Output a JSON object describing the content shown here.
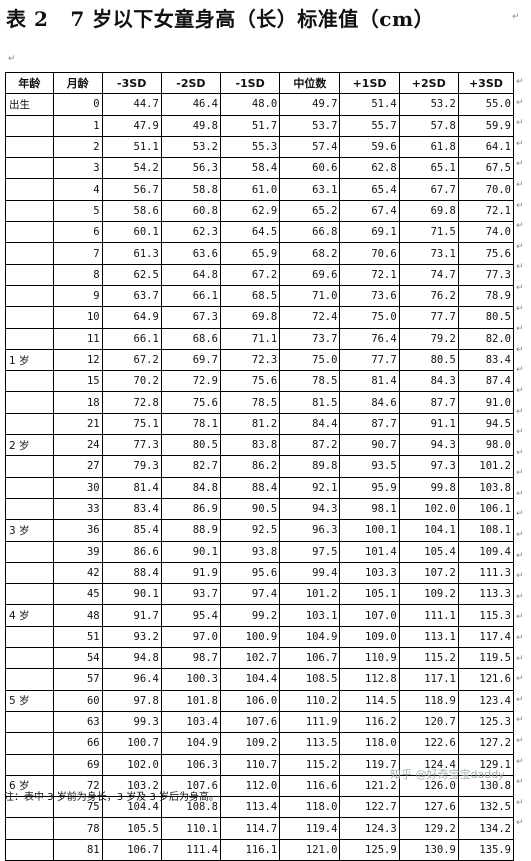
{
  "title": {
    "num": "表 2",
    "text": "7 岁以下女童身高（长）标准值（cm）"
  },
  "headers": [
    "年龄",
    "月龄",
    "-3SD",
    "-2SD",
    "-1SD",
    "中位数",
    "+1SD",
    "+2SD",
    "+3SD"
  ],
  "rows": [
    {
      "age": "出生",
      "m": "0",
      "v": [
        "44.7",
        "46.4",
        "48.0",
        "49.7",
        "51.4",
        "53.2",
        "55.0"
      ]
    },
    {
      "age": "",
      "m": "1",
      "v": [
        "47.9",
        "49.8",
        "51.7",
        "53.7",
        "55.7",
        "57.8",
        "59.9"
      ]
    },
    {
      "age": "",
      "m": "2",
      "v": [
        "51.1",
        "53.2",
        "55.3",
        "57.4",
        "59.6",
        "61.8",
        "64.1"
      ]
    },
    {
      "age": "",
      "m": "3",
      "v": [
        "54.2",
        "56.3",
        "58.4",
        "60.6",
        "62.8",
        "65.1",
        "67.5"
      ]
    },
    {
      "age": "",
      "m": "4",
      "v": [
        "56.7",
        "58.8",
        "61.0",
        "63.1",
        "65.4",
        "67.7",
        "70.0"
      ]
    },
    {
      "age": "",
      "m": "5",
      "v": [
        "58.6",
        "60.8",
        "62.9",
        "65.2",
        "67.4",
        "69.8",
        "72.1"
      ]
    },
    {
      "age": "",
      "m": "6",
      "v": [
        "60.1",
        "62.3",
        "64.5",
        "66.8",
        "69.1",
        "71.5",
        "74.0"
      ]
    },
    {
      "age": "",
      "m": "7",
      "v": [
        "61.3",
        "63.6",
        "65.9",
        "68.2",
        "70.6",
        "73.1",
        "75.6"
      ]
    },
    {
      "age": "",
      "m": "8",
      "v": [
        "62.5",
        "64.8",
        "67.2",
        "69.6",
        "72.1",
        "74.7",
        "77.3"
      ]
    },
    {
      "age": "",
      "m": "9",
      "v": [
        "63.7",
        "66.1",
        "68.5",
        "71.0",
        "73.6",
        "76.2",
        "78.9"
      ]
    },
    {
      "age": "",
      "m": "10",
      "v": [
        "64.9",
        "67.3",
        "69.8",
        "72.4",
        "75.0",
        "77.7",
        "80.5"
      ]
    },
    {
      "age": "",
      "m": "11",
      "v": [
        "66.1",
        "68.6",
        "71.1",
        "73.7",
        "76.4",
        "79.2",
        "82.0"
      ]
    },
    {
      "age": "1 岁",
      "m": "12",
      "v": [
        "67.2",
        "69.7",
        "72.3",
        "75.0",
        "77.7",
        "80.5",
        "83.4"
      ]
    },
    {
      "age": "",
      "m": "15",
      "v": [
        "70.2",
        "72.9",
        "75.6",
        "78.5",
        "81.4",
        "84.3",
        "87.4"
      ]
    },
    {
      "age": "",
      "m": "18",
      "v": [
        "72.8",
        "75.6",
        "78.5",
        "81.5",
        "84.6",
        "87.7",
        "91.0"
      ]
    },
    {
      "age": "",
      "m": "21",
      "v": [
        "75.1",
        "78.1",
        "81.2",
        "84.4",
        "87.7",
        "91.1",
        "94.5"
      ]
    },
    {
      "age": "2 岁",
      "m": "24",
      "v": [
        "77.3",
        "80.5",
        "83.8",
        "87.2",
        "90.7",
        "94.3",
        "98.0"
      ]
    },
    {
      "age": "",
      "m": "27",
      "v": [
        "79.3",
        "82.7",
        "86.2",
        "89.8",
        "93.5",
        "97.3",
        "101.2"
      ]
    },
    {
      "age": "",
      "m": "30",
      "v": [
        "81.4",
        "84.8",
        "88.4",
        "92.1",
        "95.9",
        "99.8",
        "103.8"
      ]
    },
    {
      "age": "",
      "m": "33",
      "v": [
        "83.4",
        "86.9",
        "90.5",
        "94.3",
        "98.1",
        "102.0",
        "106.1"
      ]
    },
    {
      "age": "3 岁",
      "m": "36",
      "v": [
        "85.4",
        "88.9",
        "92.5",
        "96.3",
        "100.1",
        "104.1",
        "108.1"
      ]
    },
    {
      "age": "",
      "m": "39",
      "v": [
        "86.6",
        "90.1",
        "93.8",
        "97.5",
        "101.4",
        "105.4",
        "109.4"
      ]
    },
    {
      "age": "",
      "m": "42",
      "v": [
        "88.4",
        "91.9",
        "95.6",
        "99.4",
        "103.3",
        "107.2",
        "111.3"
      ]
    },
    {
      "age": "",
      "m": "45",
      "v": [
        "90.1",
        "93.7",
        "97.4",
        "101.2",
        "105.1",
        "109.2",
        "113.3"
      ]
    },
    {
      "age": "4 岁",
      "m": "48",
      "v": [
        "91.7",
        "95.4",
        "99.2",
        "103.1",
        "107.0",
        "111.1",
        "115.3"
      ]
    },
    {
      "age": "",
      "m": "51",
      "v": [
        "93.2",
        "97.0",
        "100.9",
        "104.9",
        "109.0",
        "113.1",
        "117.4"
      ]
    },
    {
      "age": "",
      "m": "54",
      "v": [
        "94.8",
        "98.7",
        "102.7",
        "106.7",
        "110.9",
        "115.2",
        "119.5"
      ]
    },
    {
      "age": "",
      "m": "57",
      "v": [
        "96.4",
        "100.3",
        "104.4",
        "108.5",
        "112.8",
        "117.1",
        "121.6"
      ]
    },
    {
      "age": "5 岁",
      "m": "60",
      "v": [
        "97.8",
        "101.8",
        "106.0",
        "110.2",
        "114.5",
        "118.9",
        "123.4"
      ]
    },
    {
      "age": "",
      "m": "63",
      "v": [
        "99.3",
        "103.4",
        "107.6",
        "111.9",
        "116.2",
        "120.7",
        "125.3"
      ]
    },
    {
      "age": "",
      "m": "66",
      "v": [
        "100.7",
        "104.9",
        "109.2",
        "113.5",
        "118.0",
        "122.6",
        "127.2"
      ]
    },
    {
      "age": "",
      "m": "69",
      "v": [
        "102.0",
        "106.3",
        "110.7",
        "115.2",
        "119.7",
        "124.4",
        "129.1"
      ]
    },
    {
      "age": "6 岁",
      "m": "72",
      "v": [
        "103.2",
        "107.6",
        "112.0",
        "116.6",
        "121.2",
        "126.0",
        "130.8"
      ]
    },
    {
      "age": "",
      "m": "75",
      "v": [
        "104.4",
        "108.8",
        "113.4",
        "118.0",
        "122.7",
        "127.6",
        "132.5"
      ]
    },
    {
      "age": "",
      "m": "78",
      "v": [
        "105.5",
        "110.1",
        "114.7",
        "119.4",
        "124.3",
        "129.2",
        "134.2"
      ]
    },
    {
      "age": "",
      "m": "81",
      "v": [
        "106.7",
        "111.4",
        "116.1",
        "121.0",
        "125.9",
        "130.9",
        "135.9"
      ]
    }
  ],
  "note": "注：表中 3 岁前为身长，3 岁及 3 岁后为身高。",
  "watermark": "知乎 @好奇宝宝daddy",
  "marks": {
    "para": "↵",
    "cell": "↵"
  }
}
